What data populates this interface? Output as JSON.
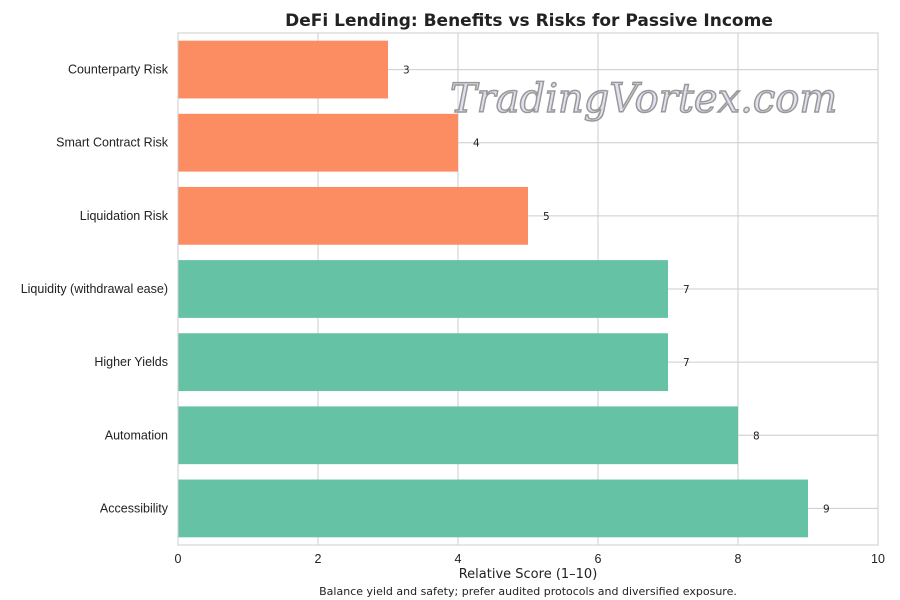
{
  "chart_data": {
    "type": "bar",
    "orientation": "horizontal",
    "title": "DeFi Lending: Benefits vs Risks for Passive Income",
    "xlabel": "Relative Score (1–10)",
    "ylabel": "",
    "xlim": [
      0,
      10
    ],
    "xticks": [
      0,
      2,
      4,
      6,
      8,
      10
    ],
    "grid": true,
    "categories": [
      "Accessibility",
      "Automation",
      "Higher Yields",
      "Liquidity (withdrawal ease)",
      "Liquidation Risk",
      "Smart Contract Risk",
      "Counterparty Risk"
    ],
    "values": [
      9,
      8,
      7,
      7,
      5,
      4,
      3
    ],
    "bar_colors": [
      "#66c2a5",
      "#66c2a5",
      "#66c2a5",
      "#66c2a5",
      "#fc8d62",
      "#fc8d62",
      "#fc8d62"
    ],
    "caption": "Balance yield and safety; prefer audited protocols and diversified exposure."
  },
  "watermark": "TradingVortex.com"
}
